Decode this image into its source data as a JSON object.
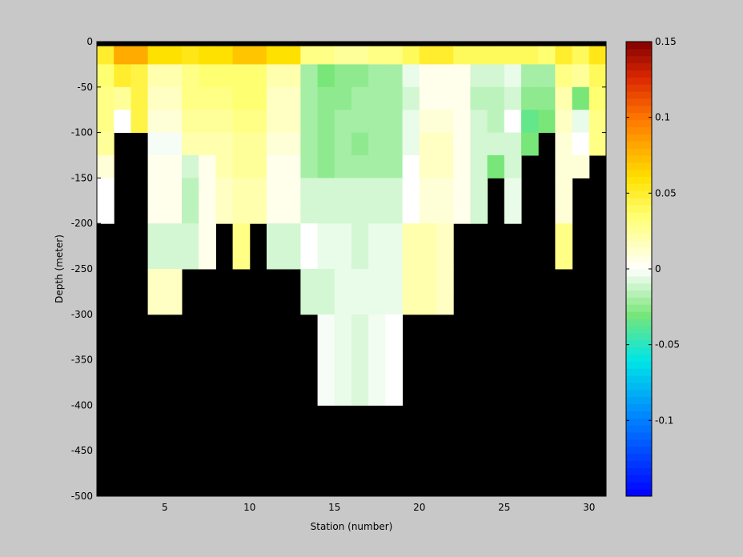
{
  "chart_data": {
    "type": "heatmap",
    "title": "",
    "xlabel": "Station (number)",
    "ylabel": "Depth (meter)",
    "xlim": [
      1,
      31
    ],
    "ylim": [
      -500,
      0
    ],
    "xticks": [
      5,
      10,
      15,
      20,
      25,
      30
    ],
    "yticks": [
      0,
      -50,
      -100,
      -150,
      -200,
      -250,
      -300,
      -350,
      -400,
      -450,
      -500
    ],
    "x_centers": [
      1.5,
      2.5,
      3.5,
      4.5,
      5.5,
      6.5,
      7.5,
      8.5,
      9.5,
      10.5,
      11.5,
      12.5,
      13.5,
      14.5,
      15.5,
      16.5,
      17.5,
      18.5,
      19.5,
      20.5,
      21.5,
      22.5,
      23.5,
      24.5,
      25.5,
      26.5,
      27.5,
      28.5,
      29.5,
      30.5
    ],
    "depth_layers": [
      {
        "top": 0,
        "bottom": -5
      },
      {
        "top": -5,
        "bottom": -25
      },
      {
        "top": -25,
        "bottom": -50
      },
      {
        "top": -50,
        "bottom": -75
      },
      {
        "top": -75,
        "bottom": -100
      },
      {
        "top": -100,
        "bottom": -125
      },
      {
        "top": -125,
        "bottom": -150
      },
      {
        "top": -150,
        "bottom": -175
      },
      {
        "top": -175,
        "bottom": -200
      },
      {
        "top": -200,
        "bottom": -225
      },
      {
        "top": -225,
        "bottom": -250
      },
      {
        "top": -250,
        "bottom": -275
      },
      {
        "top": -275,
        "bottom": -300
      },
      {
        "top": -300,
        "bottom": -350
      },
      {
        "top": -350,
        "bottom": -400
      }
    ],
    "values": [
      [
        null,
        null,
        null,
        null,
        null,
        null,
        null,
        null,
        null,
        null,
        null,
        null,
        null,
        null,
        null,
        null,
        null,
        null,
        null,
        null,
        null,
        null,
        null,
        null,
        null,
        null,
        null,
        null,
        null,
        null
      ],
      [
        0.05,
        0.08,
        0.08,
        0.06,
        0.06,
        0.055,
        0.06,
        0.06,
        0.07,
        0.07,
        0.06,
        0.06,
        0.03,
        0.03,
        0.025,
        0.025,
        0.03,
        0.03,
        0.04,
        0.05,
        0.05,
        0.04,
        0.04,
        0.04,
        0.04,
        0.04,
        0.035,
        0.05,
        0.04,
        0.055
      ],
      [
        0.035,
        0.05,
        0.045,
        0.02,
        0.02,
        0.03,
        0.035,
        0.035,
        0.035,
        0.035,
        0.02,
        0.02,
        -0.02,
        -0.03,
        -0.025,
        -0.025,
        -0.02,
        -0.02,
        -0.005,
        0.005,
        0.005,
        0.005,
        -0.01,
        -0.01,
        -0.005,
        -0.02,
        -0.02,
        0.03,
        0.025,
        0.04
      ],
      [
        0.03,
        0.025,
        0.045,
        0.015,
        0.015,
        0.03,
        0.03,
        0.03,
        0.035,
        0.035,
        0.015,
        0.015,
        -0.02,
        -0.025,
        -0.025,
        -0.02,
        -0.02,
        -0.02,
        -0.01,
        0.005,
        0.005,
        0.005,
        -0.015,
        -0.015,
        -0.01,
        -0.025,
        -0.025,
        0.02,
        -0.03,
        0.035
      ],
      [
        0.03,
        0.0,
        0.045,
        0.01,
        0.01,
        0.025,
        0.025,
        0.025,
        0.03,
        0.03,
        0.015,
        0.015,
        -0.02,
        -0.025,
        -0.02,
        -0.02,
        -0.02,
        -0.02,
        -0.005,
        0.01,
        0.01,
        0.005,
        -0.01,
        -0.015,
        0.0,
        -0.035,
        -0.03,
        0.015,
        -0.005,
        0.03
      ],
      [
        0.025,
        null,
        null,
        -0.002,
        -0.002,
        0.02,
        0.02,
        0.02,
        0.025,
        0.025,
        0.01,
        0.01,
        -0.02,
        -0.025,
        -0.02,
        -0.025,
        -0.02,
        -0.02,
        -0.005,
        0.015,
        0.015,
        0.005,
        -0.01,
        -0.01,
        -0.01,
        -0.03,
        null,
        0.01,
        0.0,
        0.03
      ],
      [
        0.01,
        null,
        null,
        0.005,
        0.005,
        -0.01,
        0.005,
        0.02,
        0.025,
        0.025,
        0.005,
        0.005,
        -0.02,
        -0.025,
        -0.02,
        -0.02,
        -0.02,
        -0.02,
        0.0,
        0.015,
        0.015,
        0.005,
        -0.01,
        -0.03,
        -0.01,
        null,
        null,
        0.01,
        0.01,
        null
      ],
      [
        0.0,
        null,
        null,
        0.005,
        0.005,
        -0.015,
        0.005,
        0.015,
        0.02,
        0.02,
        0.005,
        0.005,
        -0.01,
        -0.01,
        -0.01,
        -0.01,
        -0.01,
        -0.01,
        0.0,
        0.01,
        0.01,
        0.005,
        -0.01,
        null,
        -0.005,
        null,
        null,
        0.01,
        null,
        null
      ],
      [
        0.0,
        null,
        null,
        0.005,
        0.005,
        -0.015,
        0.005,
        0.015,
        0.02,
        0.02,
        0.005,
        0.005,
        -0.01,
        -0.01,
        -0.01,
        -0.01,
        -0.01,
        -0.01,
        0.0,
        0.01,
        0.01,
        0.005,
        -0.01,
        null,
        -0.005,
        null,
        null,
        0.01,
        null,
        null
      ],
      [
        null,
        null,
        null,
        -0.01,
        -0.01,
        -0.01,
        0.005,
        null,
        0.03,
        null,
        -0.01,
        -0.01,
        0.0,
        -0.005,
        -0.005,
        -0.01,
        -0.005,
        -0.005,
        0.02,
        0.02,
        0.015,
        null,
        null,
        null,
        null,
        null,
        null,
        0.03,
        null,
        null
      ],
      [
        null,
        null,
        null,
        -0.01,
        -0.01,
        -0.01,
        0.005,
        null,
        0.03,
        null,
        -0.01,
        -0.01,
        0.0,
        -0.005,
        -0.005,
        -0.01,
        -0.005,
        -0.005,
        0.02,
        0.02,
        0.015,
        null,
        null,
        null,
        null,
        null,
        null,
        0.03,
        null,
        null
      ],
      [
        null,
        null,
        null,
        0.015,
        0.015,
        null,
        null,
        null,
        null,
        null,
        null,
        null,
        -0.01,
        -0.01,
        -0.005,
        -0.005,
        -0.005,
        -0.005,
        0.02,
        0.02,
        0.015,
        null,
        null,
        null,
        null,
        null,
        null,
        null,
        null,
        null
      ],
      [
        null,
        null,
        null,
        0.015,
        0.015,
        null,
        null,
        null,
        null,
        null,
        null,
        null,
        -0.01,
        -0.01,
        -0.005,
        -0.005,
        -0.005,
        -0.005,
        0.02,
        0.02,
        0.015,
        null,
        null,
        null,
        null,
        null,
        null,
        null,
        null,
        null
      ],
      [
        null,
        null,
        null,
        null,
        null,
        null,
        null,
        null,
        null,
        null,
        null,
        null,
        null,
        -0.002,
        -0.005,
        -0.008,
        -0.003,
        0.0,
        null,
        null,
        null,
        null,
        null,
        null,
        null,
        null,
        null,
        null,
        null,
        null
      ],
      [
        null,
        null,
        null,
        null,
        null,
        null,
        null,
        null,
        null,
        null,
        null,
        null,
        null,
        -0.002,
        -0.005,
        -0.008,
        -0.003,
        0.0,
        null,
        null,
        null,
        null,
        null,
        null,
        null,
        null,
        null,
        null,
        null,
        null
      ]
    ],
    "colorbar": {
      "range": [
        -0.15,
        0.15
      ],
      "ticks": [
        0.15,
        0.1,
        0.05,
        0,
        -0.05,
        -0.1
      ],
      "tick_labels": [
        "0.15",
        "0.1",
        "0.05",
        "0",
        "-0.05",
        "-0.1"
      ],
      "colormap": "jet-white-center"
    },
    "colors": {
      "background": "#c8c8c8",
      "mask": "#000000"
    }
  }
}
